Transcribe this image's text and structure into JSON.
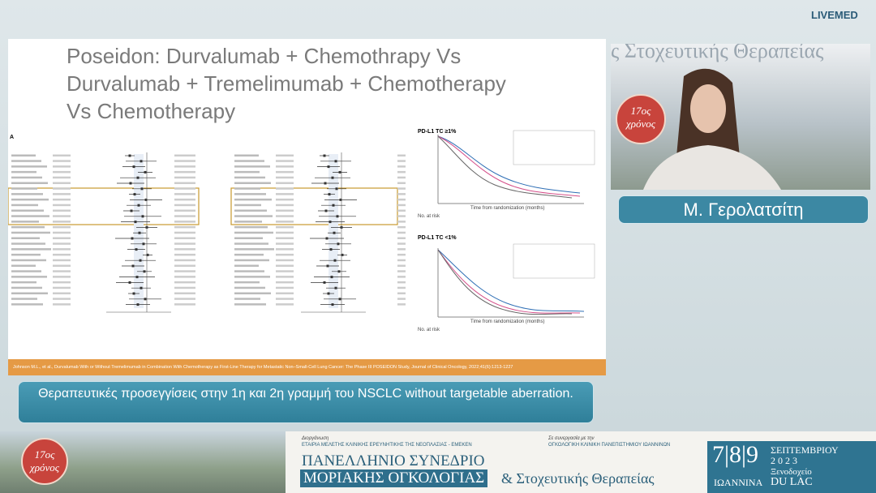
{
  "header": {
    "brand": "LIVEMED"
  },
  "slide": {
    "title": "Poseidon: Durvalumab + Chemothrapy Vs Durvalumab + Tremelimumab + Chemotherapy Vs Chemotherapy",
    "panel_label": "A",
    "km_plots": [
      {
        "title": "PD-L1 TC ≥1%",
        "x_label": "Time from randomization (months)",
        "risk_label": "No. at risk"
      },
      {
        "title": "PD-L1 TC <1%",
        "x_label": "Time from randomization (months)",
        "risk_label": "No. at risk"
      }
    ],
    "citation": "Johnson M.L., et al., Durvalumab With or Without Tremelimumab in Combination With Chemotherapy as First-Line Therapy for Metastatic Non–Small-Cell Lung Cancer: The Phase III POSEIDON Study, Journal of Clinical Oncology, 2022;41(6):1213-1227"
  },
  "caption": {
    "text": "Θεραπευτικές προσεγγίσεις στην 1η και 2η γραμμή του NSCLC without targetable aberration."
  },
  "video": {
    "backdrop_text": "ς Στοχευτικής Θεραπείας",
    "badge_line1": "17ος",
    "badge_line2": "χρόνος"
  },
  "speaker": {
    "name": "Μ. Γερολατσίτη"
  },
  "footer": {
    "badge_line1": "17ος",
    "badge_line2": "χρόνος",
    "organizer_label": "Διοργάνωση",
    "organizer": "ΕΤΑΙΡΙΑ ΜΕΛΕΤΗΣ ΚΛΙΝΙΚΗΣ ΕΡΕΥΝΗΤΙΚΗΣ ΤΗΣ ΝΕΟΠΛΑΣΙΑΣ - ΕΜΕΚΕΝ",
    "partner_label": "Σε συνεργασία με την",
    "partner": "ΟΓΚΟΛΟΓΙΚΗ ΚΛΙΝΙΚΗ ΠΑΝΕΠΙΣΤΗΜΙΟΥ ΙΩΑΝΝΙΝΩΝ",
    "event_line1": "ΠΑΝΕΛΛΗΝΙΟ ΣΥΝΕΔΡΙΟ",
    "event_line2": "ΜΟΡΙΑΚΗΣ ΟΓΚΟΛΟΓΙΑΣ",
    "event_line3": "& Στοχευτικής Θεραπείας",
    "dates": "7|8|9",
    "month": "ΣΕΠΤΕΜΒΡΙΟΥ",
    "year": "2023",
    "venue_label": "Ξενοδοχείο",
    "venue": "DU LAC",
    "city": "ΙΩΑΝΝΙΝΑ"
  }
}
